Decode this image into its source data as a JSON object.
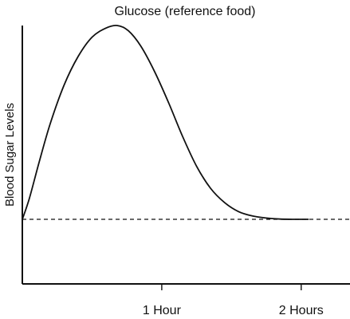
{
  "chart_data": {
    "type": "line",
    "title": "Glucose (reference food)",
    "xlabel": "",
    "ylabel": "Blood Sugar Levels",
    "x_unit": "hours",
    "xlim": [
      0,
      2.35
    ],
    "ylim": [
      0,
      100
    ],
    "grid": false,
    "legend": "none",
    "x_ticks": [
      {
        "value": 1,
        "label": "1 Hour"
      },
      {
        "value": 2,
        "label": "2 Hours"
      }
    ],
    "baseline": {
      "value": 25,
      "style": "dashed",
      "label": ""
    },
    "series": [
      {
        "name": "",
        "color": "#111111",
        "points": [
          {
            "x": 0.0,
            "y": 25.0
          },
          {
            "x": 0.05,
            "y": 33.0
          },
          {
            "x": 0.12,
            "y": 47.0
          },
          {
            "x": 0.2,
            "y": 62.0
          },
          {
            "x": 0.3,
            "y": 77.0
          },
          {
            "x": 0.4,
            "y": 88.0
          },
          {
            "x": 0.5,
            "y": 95.5
          },
          {
            "x": 0.6,
            "y": 99.0
          },
          {
            "x": 0.68,
            "y": 100.0
          },
          {
            "x": 0.76,
            "y": 98.0
          },
          {
            "x": 0.85,
            "y": 92.0
          },
          {
            "x": 0.95,
            "y": 82.0
          },
          {
            "x": 1.05,
            "y": 70.0
          },
          {
            "x": 1.15,
            "y": 57.0
          },
          {
            "x": 1.25,
            "y": 45.5
          },
          {
            "x": 1.35,
            "y": 37.0
          },
          {
            "x": 1.45,
            "y": 31.5
          },
          {
            "x": 1.55,
            "y": 28.0
          },
          {
            "x": 1.65,
            "y": 26.3
          },
          {
            "x": 1.75,
            "y": 25.5
          },
          {
            "x": 1.85,
            "y": 25.1
          },
          {
            "x": 1.95,
            "y": 25.0
          },
          {
            "x": 2.05,
            "y": 25.0
          }
        ]
      }
    ]
  }
}
